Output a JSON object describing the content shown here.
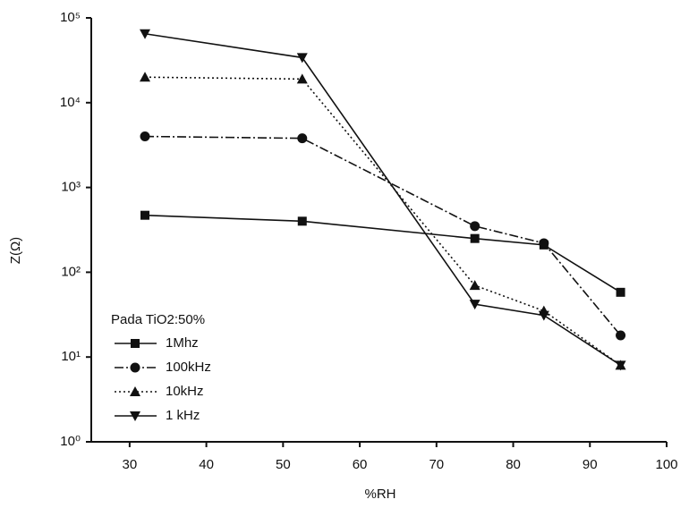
{
  "chart_data": {
    "type": "line",
    "xlabel": "%RH",
    "ylabel": "Z(Ω)",
    "legend_title": "Pada TiO2:50%",
    "x": [
      32,
      52.5,
      75,
      84,
      94
    ],
    "series": [
      {
        "name": "1Mhz",
        "color": "#111111",
        "marker": "square",
        "dash": "solid",
        "values": [
          470,
          400,
          250,
          210,
          58
        ]
      },
      {
        "name": "100kHz",
        "color": "#111111",
        "marker": "circle",
        "dash": "dashdot",
        "values": [
          4000,
          3800,
          350,
          220,
          18
        ]
      },
      {
        "name": "10kHz",
        "color": "#111111",
        "marker": "triangle-up",
        "dash": "dotted",
        "values": [
          20000,
          19000,
          70,
          35,
          8
        ]
      },
      {
        "name": "1 kHz",
        "color": "#111111",
        "marker": "triangle-down",
        "dash": "solid",
        "values": [
          65000,
          34000,
          42,
          31,
          8
        ]
      }
    ],
    "xlim": [
      25,
      100
    ],
    "xticks": [
      30,
      40,
      50,
      60,
      70,
      80,
      90,
      100
    ],
    "ylim": [
      1,
      100000
    ],
    "log_y": true,
    "yticks": [
      {
        "value": 1,
        "label": "10⁰"
      },
      {
        "value": 10,
        "label": "10¹"
      },
      {
        "value": 100,
        "label": "10²"
      },
      {
        "value": 1000,
        "label": "10³"
      },
      {
        "value": 10000,
        "label": "10⁴"
      },
      {
        "value": 100000,
        "label": "10⁵"
      }
    ],
    "grid": false,
    "legend": "lower-left"
  }
}
